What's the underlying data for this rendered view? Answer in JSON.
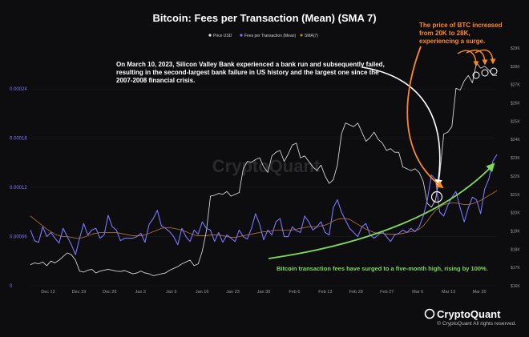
{
  "title": "Bitcoin: Fees per Transaction (Mean) (SMA 7)",
  "legend": [
    {
      "label": "Price USD",
      "color": "#e8e8e8"
    },
    {
      "label": "Fees per Transaction (Mean)",
      "color": "#7b74ff"
    },
    {
      "label": "SMA(7)",
      "color": "#c07a2a"
    }
  ],
  "annotations": {
    "svb": "On March 10, 2023, Silicon Valley Bank experienced a bank run and subsequently failed, resulting in the second-largest bank failure in US history and the largest one since the 2007-2008 financial crisis.",
    "svb_lines": [
      "On March 10, 2023, Silicon Valley Bank experienced a bank run and subsequently failed,",
      "resulting in the second-largest bank failure in US history and the largest one since the",
      "2007-2008 financial crisis."
    ],
    "btc_price_lines": [
      "The price of BTC increased",
      "from 20K to 28K,",
      "experiencing a surge."
    ],
    "fees": "Bitcoin transaction fees have surged to a five-month high, rising by 100%."
  },
  "watermark": "CryptoQuant",
  "brand": "CryptoQuant",
  "copyright": "© CryptoQuant All rights reserved.",
  "colors": {
    "background": "#0d0d0f",
    "price": "#e8e8e8",
    "fees": "#7b74ff",
    "sma": "#c07a2a",
    "orange_annotation": "#ff8a1f",
    "green_annotation": "#7ed957"
  },
  "chart_data": {
    "type": "line",
    "title": "Bitcoin: Fees per Transaction (Mean) (SMA 7)",
    "grid": true,
    "legend_position": "top",
    "x_ticks": [
      "Dec 12",
      "Dec 19",
      "Dec 26",
      "Jan 2",
      "Jan 9",
      "Jan 16",
      "Jan 23",
      "Jan 30",
      "Feb 6",
      "Feb 13",
      "Feb 20",
      "Feb 27",
      "Mar 6",
      "Mar 13",
      "Mar 20"
    ],
    "left_axis": {
      "ticks": [
        "0",
        "0.00006",
        "0.00012",
        "0.00018",
        "0.00024"
      ],
      "ylim": [
        0,
        0.00029
      ]
    },
    "right_axis": {
      "ticks": [
        "$16K",
        "$17K",
        "$18K",
        "$19K",
        "$20K",
        "$21K",
        "$22K",
        "$23K",
        "$24K",
        "$25K",
        "$26K",
        "$27K",
        "$28K",
        "$29K"
      ],
      "ylim": [
        16000,
        29000
      ]
    },
    "days": [
      "2022-12-08",
      "2023-03-24"
    ],
    "series": [
      {
        "name": "Price USD",
        "axis": "right",
        "values": [
          17150,
          17250,
          17200,
          17300,
          17100,
          17350,
          17250,
          17400,
          17600,
          17800,
          17700,
          17400,
          16800,
          16750,
          16850,
          16900,
          16700,
          16800,
          16850,
          16900,
          16850,
          16800,
          16780,
          16830,
          16750,
          16650,
          16700,
          16800,
          16700,
          16650,
          16550,
          16600,
          16650,
          16700,
          16850,
          16950,
          17050,
          17200,
          17300,
          17400,
          17100,
          17200,
          17900,
          19000,
          20900,
          20950,
          21050,
          21000,
          21150,
          20900,
          21000,
          21100,
          22400,
          22800,
          22750,
          22900,
          23000,
          22500,
          22200,
          23100,
          23300,
          23400,
          22800,
          23200,
          23700,
          23800,
          23000,
          23100,
          22800,
          22500,
          22300,
          22600,
          22000,
          21600,
          21800,
          22600,
          24300,
          24900,
          24800,
          24700,
          24900,
          24400,
          23900,
          24100,
          24400,
          24000,
          23800,
          23400,
          23500,
          23300,
          23300,
          22500,
          22400,
          22300,
          22400,
          22200,
          21700,
          20500,
          20300,
          20700,
          22000,
          24300,
          24400,
          24700,
          26800,
          26700,
          27200,
          27500,
          27100,
          28200,
          27900,
          28000,
          27800,
          27500,
          27500
        ]
      },
      {
        "name": "Fees per Transaction (Mean)",
        "axis": "left",
        "values": [
          6.8e-05,
          5.5e-05,
          5.3e-05,
          7.2e-05,
          6e-05,
          6.5e-05,
          5.8e-05,
          5.2e-05,
          7e-05,
          6e-05,
          5e-05,
          3.8e-05,
          5.8e-05,
          7.6e-05,
          6.2e-05,
          6.8e-05,
          7e-05,
          5.8e-05,
          6.2e-05,
          8.6e-05,
          7.2e-05,
          6.8e-05,
          5.5e-05,
          5.8e-05,
          5.8e-05,
          5.8e-05,
          6e-05,
          6.4e-05,
          5.3e-05,
          7.5e-05,
          8.2e-05,
          9.2e-05,
          7.3e-05,
          7e-05,
          6.6e-05,
          6e-05,
          5e-05,
          7e-05,
          6e-05,
          5.4e-05,
          6.8e-05,
          6.3e-05,
          7.8e-05,
          7e-05,
          6.8e-05,
          5.4e-05,
          6.5e-05,
          5.3e-05,
          6.2e-05,
          5.8e-05,
          5.4e-05,
          6.8e-05,
          6e-05,
          5.7e-05,
          7e-05,
          8.8e-05,
          7.5e-05,
          5.6e-05,
          6.8e-05,
          6.2e-05,
          7.8e-05,
          8.2e-05,
          6e-05,
          6e-05,
          7.2e-05,
          6.7e-05,
          6.5e-05,
          8.5e-05,
          7.8e-05,
          6.8e-05,
          7.2e-05,
          7.8e-05,
          6.5e-05,
          6.2e-05,
          9.5e-05,
          0.000105,
          9e-05,
          8e-05,
          7e-05,
          6.5e-05,
          6e-05,
          7.2e-05,
          7.6e-05,
          6.2e-05,
          5.8e-05,
          6.2e-05,
          6.6e-05,
          6e-05,
          5.4e-05,
          6.2e-05,
          6.4e-05,
          6.8e-05,
          6.5e-05,
          7e-05,
          6.6e-05,
          7.2e-05,
          8.5e-05,
          0.000105,
          0.000135,
          0.00013,
          9e-05,
          8.5e-05,
          9.8e-05,
          0.000108,
          0.000115,
          9.5e-05,
          7.8e-05,
          9.5e-05,
          0.000108,
          0.000105,
          8.8e-05,
          0.000118,
          0.00013,
          0.000152,
          0.00016
        ]
      },
      {
        "name": "SMA(7)",
        "axis": "left",
        "values": [
          8.5e-05,
          8.1e-05,
          7.7e-05,
          7.3e-05,
          6.9e-05,
          6.6e-05,
          6.3e-05,
          6.1e-05,
          6e-05,
          6e-05,
          5.9e-05,
          5.8e-05,
          5.8e-05,
          5.9e-05,
          6.1e-05,
          6.3e-05,
          6.4e-05,
          6.5e-05,
          6.5e-05,
          6.5e-05,
          6.5e-05,
          6.5e-05,
          6.4e-05,
          6.3e-05,
          6.2e-05,
          6.1e-05,
          6.1e-05,
          6.1e-05,
          6.2e-05,
          6.4e-05,
          6.6e-05,
          6.8e-05,
          7e-05,
          7.1e-05,
          7.1e-05,
          7e-05,
          6.9e-05,
          6.8e-05,
          6.6e-05,
          6.4e-05,
          6.2e-05,
          6.1e-05,
          6.1e-05,
          6.1e-05,
          6.2e-05,
          6.2e-05,
          6.2e-05,
          6.1e-05,
          6e-05,
          5.9e-05,
          5.9e-05,
          6e-05,
          6.1e-05,
          6.2e-05,
          6.3e-05,
          6.4e-05,
          6.5e-05,
          6.6e-05,
          6.6e-05,
          6.7e-05,
          6.8e-05,
          6.8e-05,
          6.8e-05,
          6.8e-05,
          6.8e-05,
          6.9e-05,
          7e-05,
          7.1e-05,
          7.2e-05,
          7.2e-05,
          7.2e-05,
          7.3e-05,
          7.4e-05,
          7.6e-05,
          7.9e-05,
          8.1e-05,
          8.2e-05,
          8.2e-05,
          8.1e-05,
          7.8e-05,
          7.5e-05,
          7.2e-05,
          6.9e-05,
          6.7e-05,
          6.5e-05,
          6.4e-05,
          6.4e-05,
          6.3e-05,
          6.3e-05,
          6.3e-05,
          6.3e-05,
          6.4e-05,
          6.5e-05,
          6.6e-05,
          6.7e-05,
          6.9e-05,
          7.3e-05,
          7.9e-05,
          8.6e-05,
          9.2e-05,
          9.6e-05,
          9.9e-05,
          0.0001,
          0.000101,
          0.000101,
          0.0001,
          9.9e-05,
          9.9e-05,
          0.0001,
          0.000102,
          0.000104,
          0.000107,
          0.00011,
          0.000113,
          0.000116
        ]
      }
    ]
  }
}
